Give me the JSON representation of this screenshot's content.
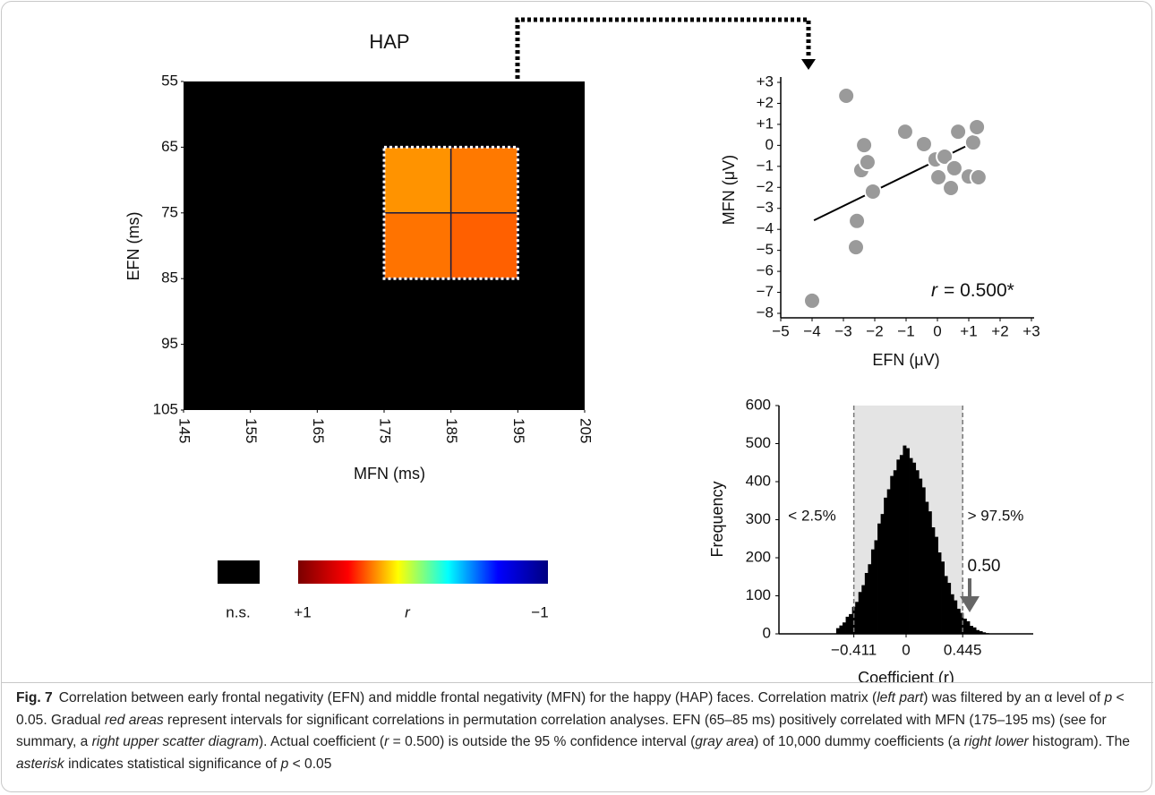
{
  "chart_data": [
    {
      "type": "heatmap",
      "title": "HAP",
      "x_label": "MFN (ms)",
      "y_label": "EFN (ms)",
      "xlim": [
        145,
        205
      ],
      "xticks": [
        145,
        155,
        165,
        175,
        185,
        195,
        205
      ],
      "ylim": [
        55,
        105
      ],
      "yticks": [
        55,
        65,
        75,
        85,
        95,
        105
      ],
      "y_inverted": true,
      "xbins": [
        175,
        185,
        195
      ],
      "ybins": [
        65,
        75,
        85
      ],
      "values": [
        [
          0.37,
          0.41
        ],
        [
          0.42,
          0.45
        ]
      ],
      "background": "#000000",
      "colorbar": {
        "ns_label": "n.s.",
        "label": "r",
        "ticks": [
          {
            "value": 1,
            "label": "+1"
          },
          {
            "value": -1,
            "label": "−1"
          }
        ],
        "colors": [
          "#7a0000",
          "#ff0000",
          "#ffff00",
          "#00ffff",
          "#0000ff",
          "#000080"
        ]
      }
    },
    {
      "type": "scatter",
      "x_label": "EFN (μV)",
      "y_label": "MFN (μV)",
      "xlim": [
        -5,
        3
      ],
      "xticks": [
        {
          "value": -5,
          "label": "−5"
        },
        {
          "value": -4,
          "label": "−4"
        },
        {
          "value": -3,
          "label": "−3"
        },
        {
          "value": -2,
          "label": "−2"
        },
        {
          "value": -1,
          "label": "−1"
        },
        0,
        {
          "value": 1,
          "label": "+1"
        },
        {
          "value": 2,
          "label": "+2"
        },
        {
          "value": 3,
          "label": "+3"
        }
      ],
      "ylim": [
        -8,
        3
      ],
      "yticks": [
        {
          "value": 3,
          "label": "+3"
        },
        {
          "value": 2,
          "label": "+2"
        },
        {
          "value": 1,
          "label": "+1"
        },
        0,
        {
          "value": -1,
          "label": "−1"
        },
        {
          "value": -2,
          "label": "−2"
        },
        {
          "value": -3,
          "label": "−3"
        },
        {
          "value": -4,
          "label": "−4"
        },
        {
          "value": -5,
          "label": "−5"
        },
        {
          "value": -6,
          "label": "−6"
        },
        {
          "value": -7,
          "label": "−7"
        },
        {
          "value": -8,
          "label": "−8"
        }
      ],
      "x": [
        -2.91,
        -2.34,
        -1.03,
        -2.43,
        -2.23,
        -2.06,
        -2.57,
        -2.6,
        -4.0,
        -0.43,
        -0.06,
        0.23,
        0.03,
        0.54,
        0.43,
        0.66,
        1.0,
        1.14,
        1.26,
        1.31
      ],
      "y": [
        2.36,
        0.01,
        0.65,
        -1.18,
        -0.8,
        -2.2,
        -3.6,
        -4.85,
        -7.4,
        0.06,
        -0.67,
        -0.54,
        -1.52,
        -1.09,
        -2.03,
        0.65,
        -1.48,
        0.14,
        0.87,
        -1.52
      ],
      "color": "#9a9a9a",
      "fit": {
        "x": [
          -3.94,
          1.23
        ],
        "y": [
          -3.57,
          0.19
        ]
      },
      "annotation_symbol": "r",
      "annotation_text": "= 0.500*"
    },
    {
      "type": "histogram",
      "x_label": "Coefficient (r)",
      "y_label": "Frequency",
      "xlim": [
        -1,
        1
      ],
      "xticks": [
        {
          "value": -0.411,
          "label": "−0.411"
        },
        0,
        0.445
      ],
      "ylim": [
        0,
        600
      ],
      "yticks": [
        0,
        100,
        200,
        300,
        400,
        500,
        600
      ],
      "bins": [
        -0.55,
        -0.525,
        -0.5,
        -0.475,
        -0.45,
        -0.425,
        -0.4,
        -0.375,
        -0.35,
        -0.325,
        -0.3,
        -0.275,
        -0.25,
        -0.225,
        -0.2,
        -0.175,
        -0.15,
        -0.125,
        -0.1,
        -0.075,
        -0.05,
        -0.025,
        0,
        0.025,
        0.05,
        0.075,
        0.1,
        0.125,
        0.15,
        0.175,
        0.2,
        0.225,
        0.25,
        0.275,
        0.3,
        0.325,
        0.35,
        0.375,
        0.4,
        0.425,
        0.45,
        0.475,
        0.5,
        0.525,
        0.55,
        0.575,
        0.6,
        0.625,
        0.65
      ],
      "values": [
        15,
        22,
        30,
        45,
        52,
        71,
        84,
        110,
        128,
        160,
        183,
        222,
        246,
        290,
        315,
        358,
        380,
        415,
        430,
        458,
        470,
        495,
        488,
        462,
        450,
        430,
        408,
        385,
        347,
        322,
        280,
        255,
        214,
        190,
        152,
        134,
        104,
        88,
        66,
        55,
        40,
        33,
        21,
        17,
        10,
        7,
        4,
        2
      ],
      "color": "#000000",
      "interval": [
        -0.411,
        0.445
      ],
      "interval_color": "#e4e4e4",
      "annotations": [
        "< 2.5%",
        "> 97.5%"
      ],
      "marker": {
        "value": 0.5,
        "label": "0.50"
      }
    }
  ],
  "caption": {
    "label": "Fig. 7",
    "runs": [
      {
        "text": "Correlation between early frontal negativity (EFN) and middle frontal negativity (MFN) for the happy (HAP) faces. Correlation matrix ("
      },
      {
        "text": "left part",
        "italic": true
      },
      {
        "text": ") was filtered by an α level of "
      },
      {
        "text": "p",
        "italic": true
      },
      {
        "text": " < 0.05. Gradual "
      },
      {
        "text": "red areas",
        "italic": true
      },
      {
        "text": " represent intervals for significant correlations in permutation correlation analyses. EFN (65–85 ms) positively correlated with MFN (175–195 ms) (see for summary, a "
      },
      {
        "text": "right upper scatter diagram",
        "italic": true
      },
      {
        "text": "). Actual coefficient ("
      },
      {
        "text": "r",
        "italic": true
      },
      {
        "text": " = 0.500) is outside the 95 % confidence interval ("
      },
      {
        "text": "gray area",
        "italic": true
      },
      {
        "text": ") of 10,000 dummy coefficients (a "
      },
      {
        "text": "right lower",
        "italic": true
      },
      {
        "text": " histogram). The "
      },
      {
        "text": "asterisk",
        "italic": true
      },
      {
        "text": " indicates statistical significance of "
      },
      {
        "text": "p",
        "italic": true
      },
      {
        "text": " < 0.05"
      }
    ]
  }
}
